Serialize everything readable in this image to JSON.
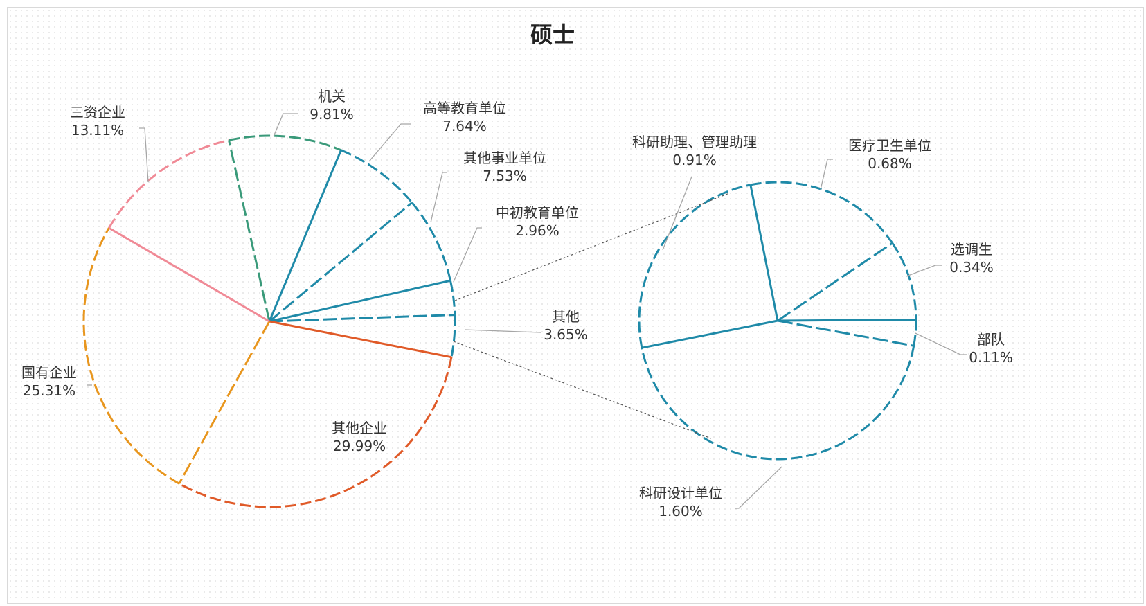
{
  "chart_data": {
    "type": "pie",
    "subtype": "pie-of-pie",
    "title": "硕士",
    "main_pie": [
      {
        "label": "机关",
        "value": 9.81,
        "value_label": "9.81%",
        "color": "#3a9a7a"
      },
      {
        "label": "高等教育单位",
        "value": 7.64,
        "value_label": "7.64%",
        "color": "#1f8aa8"
      },
      {
        "label": "其他事业单位",
        "value": 7.53,
        "value_label": "7.53%",
        "color": "#1f8aa8"
      },
      {
        "label": "中初教育单位",
        "value": 2.96,
        "value_label": "2.96%",
        "color": "#1f8aa8"
      },
      {
        "label": "其他",
        "value": 3.65,
        "value_label": "3.65%",
        "color": "#1f8aa8"
      },
      {
        "label": "其他企业",
        "value": 29.99,
        "value_label": "29.99%",
        "color": "#e05a28"
      },
      {
        "label": "国有企业",
        "value": 25.31,
        "value_label": "25.31%",
        "color": "#e8961e"
      },
      {
        "label": "三资企业",
        "value": 13.11,
        "value_label": "13.11%",
        "color": "#f08a96"
      }
    ],
    "secondary_pie": [
      {
        "label": "医疗卫生单位",
        "value": 0.68,
        "value_label": "0.68%",
        "color": "#1f8aa8"
      },
      {
        "label": "选调生",
        "value": 0.34,
        "value_label": "0.34%",
        "color": "#1f8aa8"
      },
      {
        "label": "部队",
        "value": 0.11,
        "value_label": "0.11%",
        "color": "#1f8aa8"
      },
      {
        "label": "科研设计单位",
        "value": 1.6,
        "value_label": "1.60%",
        "color": "#1f8aa8"
      },
      {
        "label": "科研助理、管理助理",
        "value": 0.91,
        "value_label": "0.91%",
        "color": "#1f8aa8"
      }
    ],
    "legend": "none",
    "grid": false
  }
}
